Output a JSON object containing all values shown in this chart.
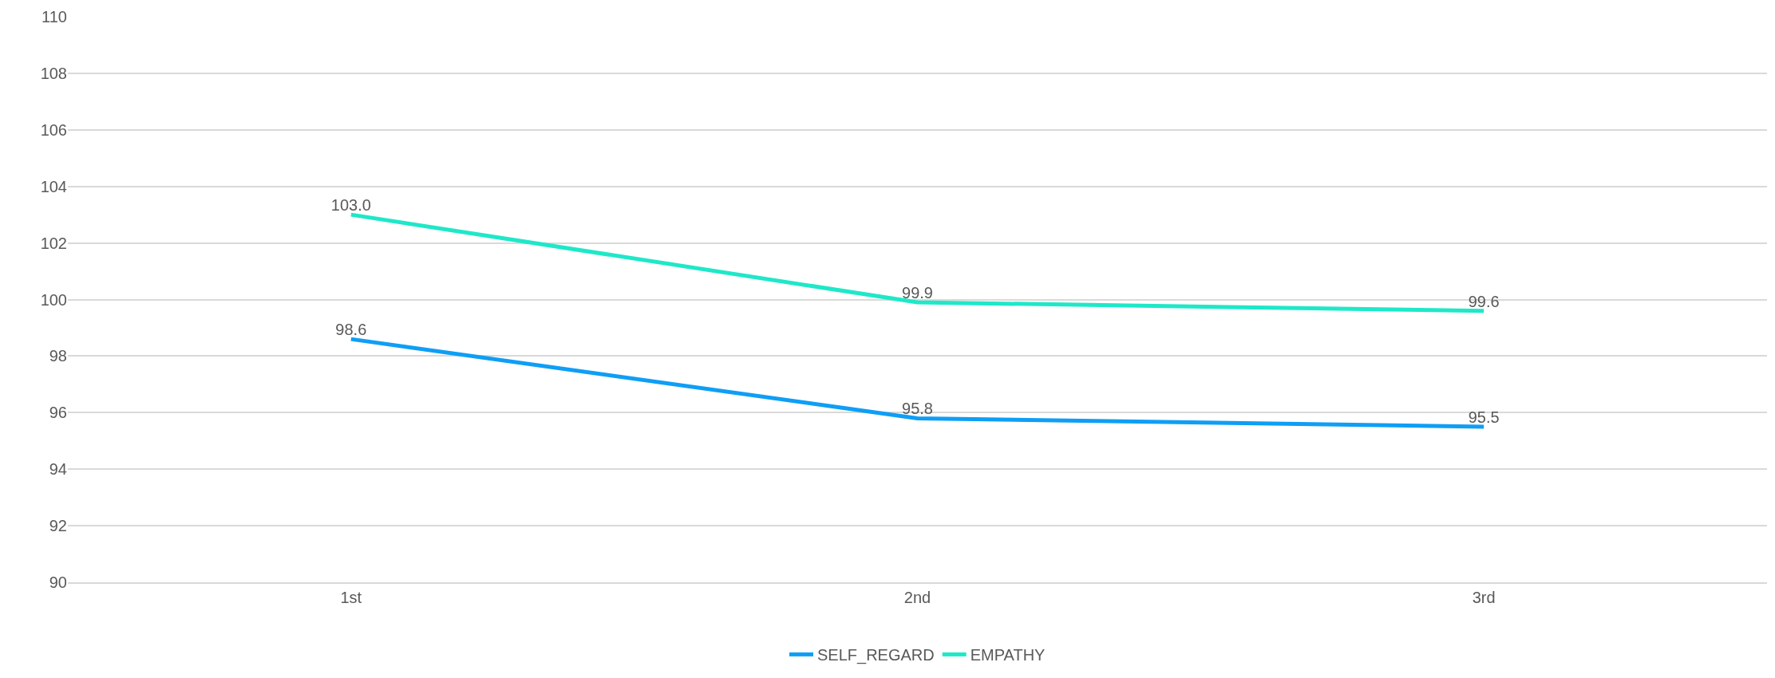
{
  "chart_data": {
    "type": "line",
    "categories": [
      "1st",
      "2nd",
      "3rd"
    ],
    "series": [
      {
        "name": "SELF_REGARD",
        "color": "#0f9ef5",
        "values": [
          98.6,
          95.8,
          95.5
        ],
        "value_labels": [
          "98.6",
          "95.8",
          "95.5"
        ]
      },
      {
        "name": "EMPATHY",
        "color": "#1ee8c8",
        "values": [
          103.0,
          99.9,
          99.6
        ],
        "value_labels": [
          "103.0",
          "99.9",
          "99.6"
        ]
      }
    ],
    "ylim": [
      90,
      110
    ],
    "yticks": [
      90,
      92,
      94,
      96,
      98,
      100,
      102,
      104,
      106,
      108,
      110
    ],
    "grid": "y",
    "legend": "bottom",
    "marker": "none",
    "line_style": "solid"
  }
}
